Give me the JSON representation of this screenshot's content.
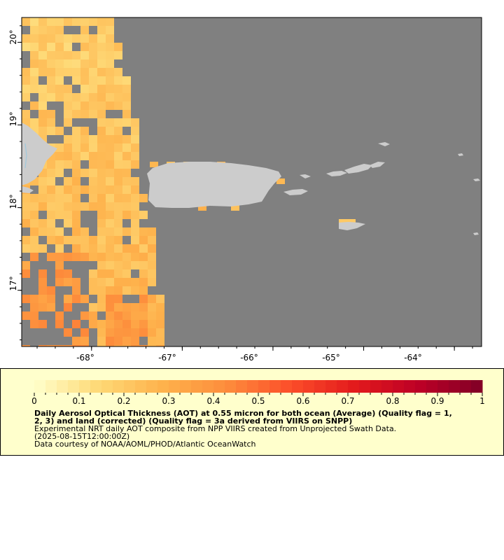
{
  "map": {
    "lon_ticks": [
      "-68°",
      "-67°",
      "-66°",
      "-65°",
      "-64°"
    ],
    "lat_ticks": [
      "20°",
      "19°",
      "18°",
      "17°"
    ],
    "lon_values": [
      -68,
      -67,
      -66,
      -65,
      -64
    ],
    "lat_values": [
      20,
      19,
      18,
      17
    ],
    "lon_range": [
      -68.77,
      -63.7
    ],
    "lat_range": [
      16.32,
      20.3
    ],
    "colors": {
      "no_data": "#808080",
      "land": "#cccccc",
      "water_body": "#a0c8dc"
    }
  },
  "legend": {
    "ticks": [
      "0",
      "0.1",
      "0.2",
      "0.3",
      "0.4",
      "0.5",
      "0.6",
      "0.7",
      "0.8",
      "0.9",
      "1"
    ],
    "range": [
      0,
      1
    ],
    "background": "#ffffcc",
    "colormap": [
      "#ffffcc",
      "#fed976",
      "#feb24c",
      "#fd8d3c",
      "#fc4e2a",
      "#e31a1c",
      "#bd0026",
      "#800026"
    ],
    "title_line1": "Daily Aerosol Optical Thickness (AOT) at 0.55 micron for both ocean (Average) (Quality flag = 1,",
    "title_line2": "2, 3) and land (corrected) (Quality flag = 3a derived from VIIRS on SNPP)",
    "description": "Experimental NRT daily AOT composite from NPP VIIRS created from Unprojected Swath Data.",
    "time": "(2025-08-15T12:00:00Z)",
    "credit": "Data courtesy of NOAA/AOML/PHOD/Atlantic OceanWatch"
  }
}
